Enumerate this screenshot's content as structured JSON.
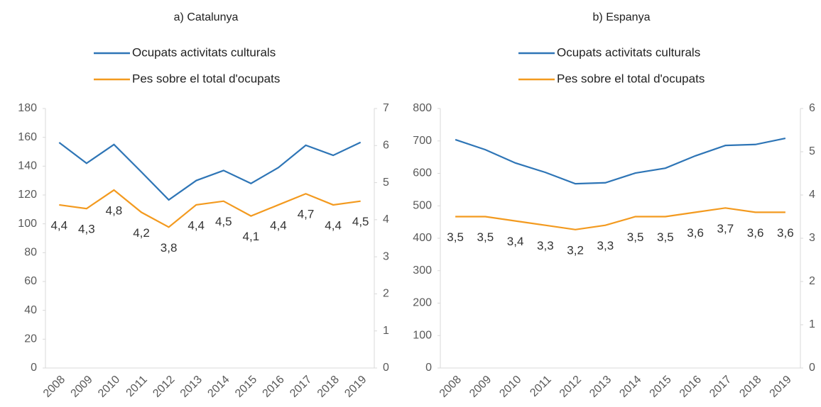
{
  "chart_data": [
    {
      "type": "line",
      "title": "a) Catalunya",
      "categories": [
        "2008",
        "2009",
        "2010",
        "2011",
        "2012",
        "2013",
        "2014",
        "2015",
        "2016",
        "2017",
        "2018",
        "2019"
      ],
      "series": [
        {
          "name": "Ocupats activitats culturals",
          "color": "#2e75b6",
          "values": [
            156.4,
            142,
            155,
            136,
            116.6,
            130,
            137,
            128,
            139,
            154.5,
            147.5,
            156.5
          ]
        },
        {
          "name": "Pes sobre el total d'ocupats",
          "color": "#f39a1f",
          "axis": "y2",
          "values": [
            4.4,
            4.3,
            4.8,
            4.2,
            3.8,
            4.4,
            4.5,
            4.1,
            4.4,
            4.7,
            4.4,
            4.5
          ],
          "value_labels": [
            "4,4",
            "4,3",
            "4,8",
            "4,2",
            "3,8",
            "4,4",
            "4,5",
            "4,1",
            "4,4",
            "4,7",
            "4,4",
            "4,5"
          ]
        }
      ],
      "ylim": [
        0,
        180
      ],
      "yticks": [
        0,
        20,
        40,
        60,
        80,
        100,
        120,
        140,
        160,
        180
      ],
      "y2lim": [
        0,
        7
      ],
      "y2ticks": [
        0,
        1,
        2,
        3,
        4,
        5,
        6,
        7
      ]
    },
    {
      "type": "line",
      "title": "b) Espanya",
      "categories": [
        "2008",
        "2009",
        "2010",
        "2011",
        "2012",
        "2013",
        "2014",
        "2015",
        "2016",
        "2017",
        "2018",
        "2019"
      ],
      "series": [
        {
          "name": "Ocupats activitats culturals",
          "color": "#2e75b6",
          "values": [
            704,
            673,
            632,
            603,
            568,
            571,
            601,
            616,
            654,
            686,
            689,
            708
          ]
        },
        {
          "name": "Pes sobre el total d'ocupats",
          "color": "#f39a1f",
          "axis": "y2",
          "values": [
            3.5,
            3.5,
            3.4,
            3.3,
            3.2,
            3.3,
            3.5,
            3.5,
            3.6,
            3.7,
            3.6,
            3.6
          ],
          "value_labels": [
            "3,5",
            "3,5",
            "3,4",
            "3,3",
            "3,2",
            "3,3",
            "3,5",
            "3,5",
            "3,6",
            "3,7",
            "3,6",
            "3,6"
          ]
        }
      ],
      "ylim": [
        0,
        800
      ],
      "yticks": [
        0,
        100,
        200,
        300,
        400,
        500,
        600,
        700,
        800
      ],
      "y2lim": [
        0,
        6
      ],
      "y2ticks": [
        0,
        1,
        2,
        3,
        4,
        5,
        6
      ]
    }
  ]
}
